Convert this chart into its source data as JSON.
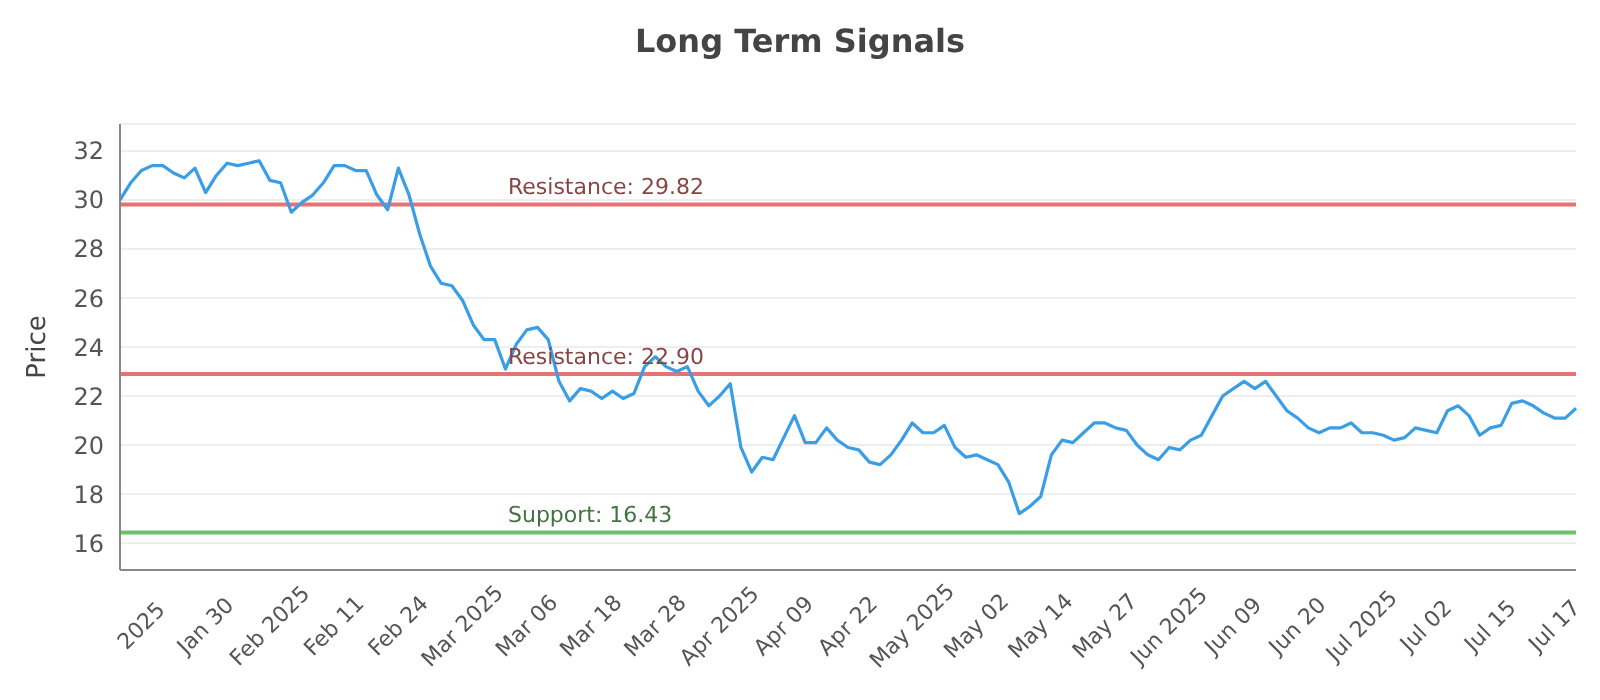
{
  "chart_data": {
    "type": "line",
    "title": "Long Term Signals",
    "ylabel": "Price",
    "categories": [
      null,
      null,
      "2025",
      null,
      null,
      null,
      null,
      null,
      "Jan 30",
      null,
      null,
      null,
      null,
      null,
      "Feb 2025",
      null,
      null,
      null,
      null,
      null,
      "Feb 11",
      null,
      null,
      null,
      null,
      null,
      "Feb 24",
      null,
      null,
      null,
      null,
      null,
      "Mar 2025",
      null,
      null,
      null,
      null,
      null,
      "Mar 06",
      null,
      null,
      null,
      null,
      null,
      "Mar 18",
      null,
      null,
      null,
      null,
      null,
      "Mar 28",
      null,
      null,
      null,
      null,
      null,
      "Apr 2025",
      null,
      null,
      null,
      null,
      null,
      "Apr 09",
      null,
      null,
      null,
      null,
      null,
      "Apr 22",
      null,
      null,
      null,
      null,
      null,
      "May 2025",
      null,
      null,
      null,
      null,
      null,
      "May 02",
      null,
      null,
      null,
      null,
      null,
      "May 14",
      null,
      null,
      null,
      null,
      null,
      "May 27",
      null,
      null,
      null,
      null,
      null,
      "Jun 2025",
      null,
      null,
      null,
      null,
      null,
      "Jun 09",
      null,
      null,
      null,
      null,
      null,
      "Jun 20",
      null,
      null,
      null,
      null,
      null,
      "Jul 2025",
      null,
      null,
      null,
      null,
      null,
      "Jul 02",
      null,
      null,
      null,
      null,
      null,
      "Jul 15",
      null,
      null,
      null,
      null,
      null,
      "Jul 17",
      null,
      null
    ],
    "series": [
      {
        "color": "#3a9ee6",
        "values": [
          30.0,
          30.7,
          31.2,
          31.4,
          31.4,
          31.1,
          30.9,
          31.3,
          30.3,
          31.0,
          31.5,
          31.4,
          31.5,
          31.6,
          30.8,
          30.7,
          29.5,
          29.9,
          30.2,
          30.7,
          31.4,
          31.4,
          31.2,
          31.2,
          30.2,
          29.6,
          31.3,
          30.2,
          28.6,
          27.3,
          26.6,
          26.5,
          25.9,
          24.9,
          24.3,
          24.3,
          23.1,
          24.1,
          24.7,
          24.8,
          24.3,
          22.6,
          21.8,
          22.3,
          22.2,
          21.9,
          22.2,
          21.9,
          22.1,
          23.2,
          23.6,
          23.2,
          23.0,
          23.2,
          22.2,
          21.6,
          22.0,
          22.5,
          19.9,
          18.9,
          19.5,
          19.4,
          20.3,
          21.2,
          20.1,
          20.1,
          20.7,
          20.2,
          19.9,
          19.8,
          19.3,
          19.2,
          19.6,
          20.2,
          20.9,
          20.5,
          20.5,
          20.8,
          19.9,
          19.5,
          19.6,
          19.4,
          19.2,
          18.5,
          17.2,
          17.5,
          17.9,
          19.6,
          20.2,
          20.1,
          20.5,
          20.9,
          20.9,
          20.7,
          20.6,
          20.0,
          19.6,
          19.4,
          19.9,
          19.8,
          20.2,
          20.4,
          21.2,
          22.0,
          22.3,
          22.6,
          22.3,
          22.6,
          22.0,
          21.4,
          21.1,
          20.7,
          20.5,
          20.7,
          20.7,
          20.9,
          20.5,
          20.5,
          20.4,
          20.2,
          20.3,
          20.7,
          20.6,
          20.5,
          21.4,
          21.6,
          21.2,
          20.4,
          20.7,
          20.8,
          21.7,
          21.8,
          21.6,
          21.3,
          21.1,
          21.1,
          21.5
        ]
      }
    ],
    "ylim": [
      14.9,
      33.1
    ],
    "yticks": [
      16,
      18,
      20,
      22,
      24,
      26,
      28,
      30,
      32
    ],
    "grid": "y",
    "marker": "none",
    "line_style": "solid",
    "legend": false,
    "ref_lines": [
      {
        "axis": "y",
        "value": 29.82,
        "label": "Resistance: 29.82",
        "color": "#e57373"
      },
      {
        "axis": "y",
        "value": 22.9,
        "label": "Resistance: 22.90",
        "color": "#e57373"
      },
      {
        "axis": "y",
        "value": 16.43,
        "label": "Support: 16.43",
        "color": "#6fbf6f"
      }
    ]
  }
}
